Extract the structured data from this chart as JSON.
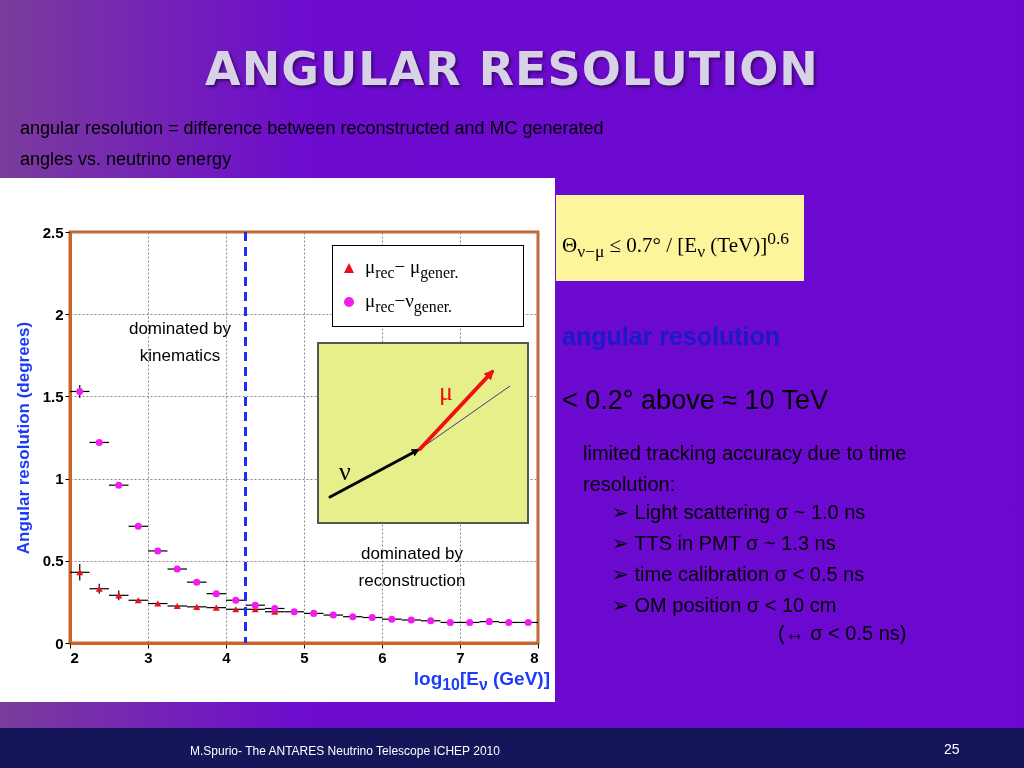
{
  "chart_data": {
    "type": "scatter",
    "title": "ANGULAR RESOLUTION",
    "subtitle": "angular resolution = difference between reconstructed and MC generated angles vs. neutrino energy",
    "xlabel": "log$_{10}$[E$_{ν}$ (GeV)]",
    "ylabel": "Angular resolution (degrees)",
    "x": [
      2.125,
      2.375,
      2.625,
      2.875,
      3.125,
      3.375,
      3.625,
      3.875,
      4.125,
      4.375,
      4.625,
      4.875,
      5.125,
      5.375,
      5.625,
      5.875,
      6.125,
      6.375,
      6.625,
      6.875,
      7.125,
      7.375,
      7.625,
      7.875
    ],
    "series": [
      {
        "name": "μ$_{rec}$− μ$_{gener.}$",
        "color": "#e8101a",
        "marker": "triangle",
        "values": [
          0.43,
          0.33,
          0.29,
          0.26,
          0.24,
          0.225,
          0.22,
          0.215,
          0.205,
          0.205,
          0.19,
          null,
          null,
          null,
          null,
          null,
          null,
          null,
          null,
          null,
          null,
          null,
          null,
          null
        ],
        "errors": [
          0.05,
          0.03,
          0.03,
          null,
          null,
          null,
          null,
          null,
          null,
          null,
          null,
          null,
          null,
          null,
          null,
          null,
          null,
          null,
          null,
          null,
          null,
          null,
          null,
          null
        ],
        "xerrors": [
          0.125,
          0.125,
          0.125,
          0.125,
          0.125,
          0.125,
          0.125,
          0.125,
          0.125,
          0.125,
          0.125,
          null,
          null,
          null,
          null,
          null,
          null,
          null,
          null,
          null,
          null,
          null,
          null,
          null
        ]
      },
      {
        "name": "μ$_{rec}$−ν$_{gener.}$",
        "color": "#f21cf0",
        "marker": "circle",
        "values": [
          1.53,
          1.22,
          0.96,
          0.71,
          0.56,
          0.45,
          0.37,
          0.3,
          0.26,
          0.23,
          0.21,
          0.19,
          0.18,
          0.17,
          0.16,
          0.155,
          0.145,
          0.14,
          0.135,
          0.125,
          0.125,
          0.13,
          0.125,
          0.125
        ],
        "errors": [
          0.04,
          null,
          null,
          null,
          null,
          null,
          null,
          null,
          null,
          null,
          null,
          null,
          null,
          null,
          null,
          null,
          null,
          null,
          null,
          null,
          null,
          null,
          null,
          null
        ],
        "xerrors": [
          0.125,
          0.125,
          0.125,
          0.125,
          0.125,
          0.125,
          0.125,
          0.125,
          0.125,
          0.125,
          0.125,
          0.125,
          0.125,
          0.125,
          0.125,
          0.125,
          0.125,
          0.125,
          0.125,
          0.125,
          0.125,
          0.125,
          0.125,
          0.125
        ]
      }
    ],
    "xlim": [
      2,
      8
    ],
    "xticks": [
      2,
      3,
      4,
      5,
      6,
      7,
      8
    ],
    "ylim": [
      0,
      2.5
    ],
    "yticks": [
      0,
      0.5,
      1,
      1.5,
      2,
      2.5
    ],
    "grid": true,
    "legend": "top right",
    "ref_lines": [
      {
        "axis": "x",
        "value": 4.25,
        "color": "#1f2ef0",
        "line_style": "dashed"
      }
    ],
    "annotations": [
      "dominated by kinematics",
      "dominated by reconstruction",
      "ν",
      "μ",
      "Θ$_{ν−μ}$ ≤ 0.7° / [E$_{ν}$ (TeV)]$^{0.6}$",
      "angular resolution",
      "< 0.2° above ≈ 10 TeV",
      "limited tracking accuracy due to time resolution:",
      "➢ Light scattering σ ~ 1.0 ns",
      "➢ TTS in PMT σ ~ 1.3 ns",
      "➢ time calibration σ < 0.5 ns",
      "➢ OM position σ < 10 cm",
      "(↔ σ < 0.5 ns)",
      "M.Spurio- The ANTARES Neutrino Telescope ICHEP 2010",
      "25"
    ]
  }
}
